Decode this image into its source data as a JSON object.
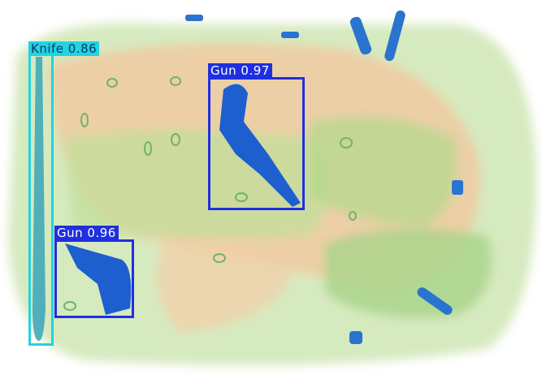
{
  "detections": [
    {
      "label": "Knife",
      "score": "0.86",
      "text": "Knife 0.86",
      "color": "#22d3e0",
      "text_color": "#0a3a6e"
    },
    {
      "label": "Gun",
      "score": "0.97",
      "text": "Gun 0.97",
      "color": "#1f2fe0",
      "text_color": "#ffffff"
    },
    {
      "label": "Gun",
      "score": "0.96",
      "text": "Gun 0.96",
      "color": "#1f2fe0",
      "text_color": "#ffffff"
    }
  ],
  "colors": {
    "bag_green": "#a8d48a",
    "bag_orange": "#f0b98a",
    "object_blue": "#1e5fd0"
  }
}
